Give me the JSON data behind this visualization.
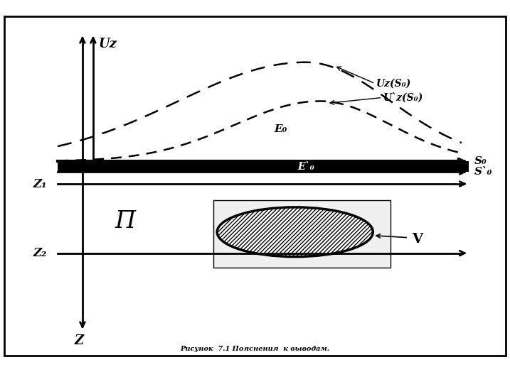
{
  "background_color": "#ffffff",
  "title_text": "Рисунок  7.1 Пояснения  к выводам.",
  "uz_label": "Uz",
  "s0_label": "S₀",
  "s0_prime_label": "S`₀",
  "z1_label": "Z₁",
  "z2_label": "Z₂",
  "z_label": "Z",
  "pi_label": "Π",
  "v_label": "V",
  "e0_label": "E₀",
  "e0_prime_label": "E`₀",
  "uz_s0_label": "Uz(S₀)",
  "uz_prime_s0_label": "U`z(S₀)"
}
